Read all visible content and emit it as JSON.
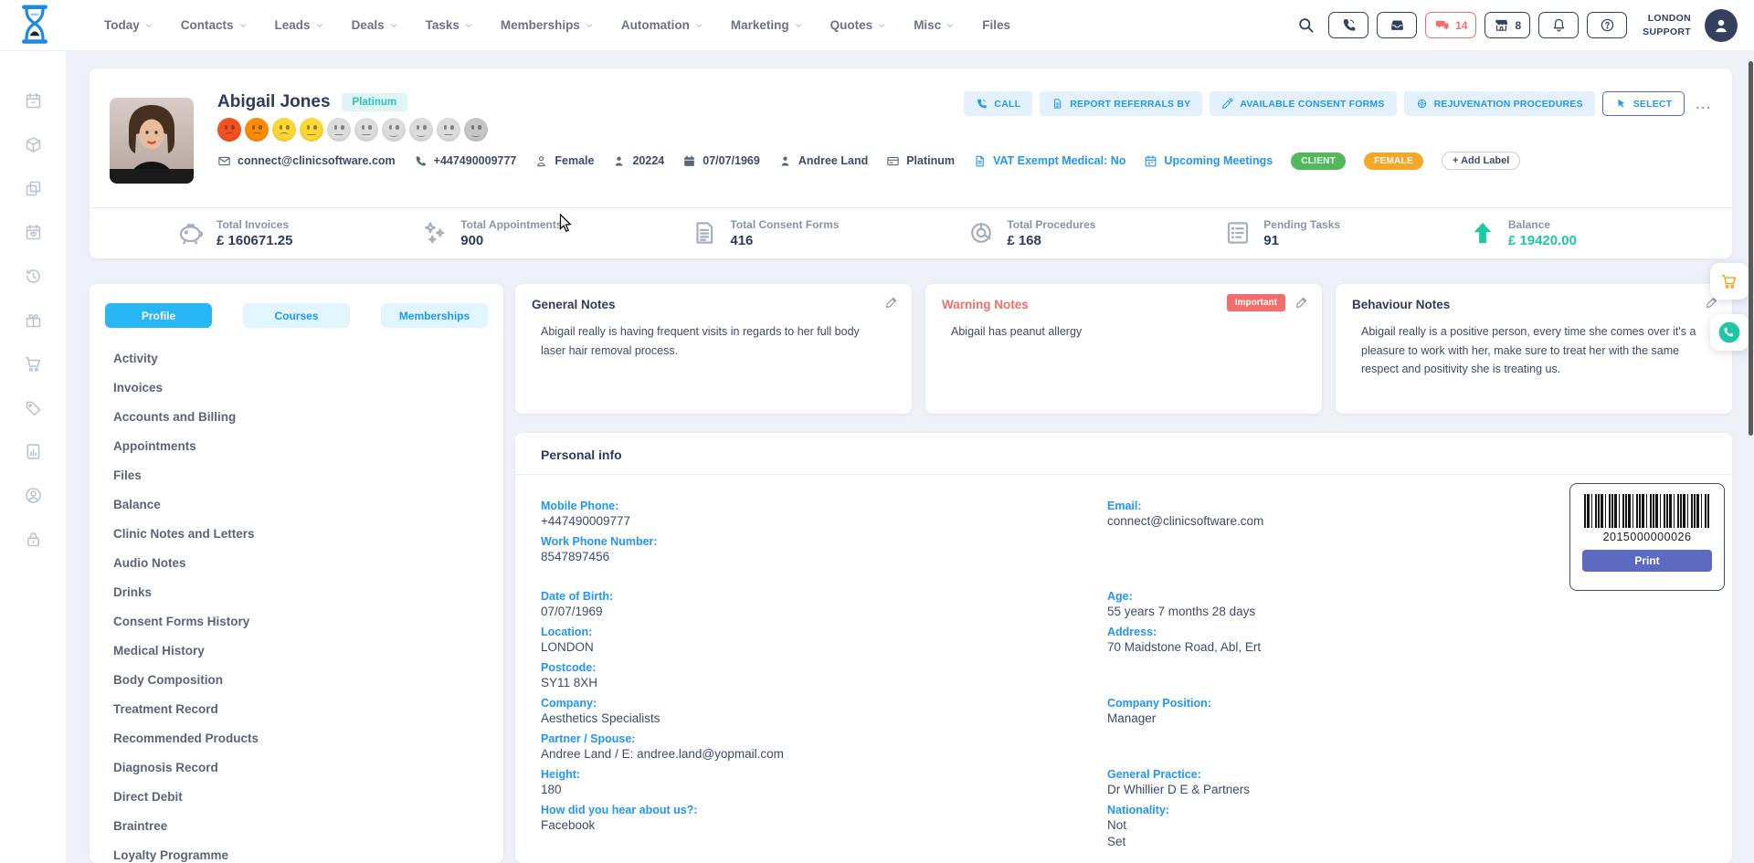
{
  "topbar": {
    "nav": [
      {
        "label": "Today",
        "dropdown": true
      },
      {
        "label": "Contacts",
        "dropdown": true
      },
      {
        "label": "Leads",
        "dropdown": true
      },
      {
        "label": "Deals",
        "dropdown": true
      },
      {
        "label": "Tasks",
        "dropdown": true
      },
      {
        "label": "Memberships",
        "dropdown": true
      },
      {
        "label": "Automation",
        "dropdown": true
      },
      {
        "label": "Marketing",
        "dropdown": true
      },
      {
        "label": "Quotes",
        "dropdown": true
      },
      {
        "label": "Misc",
        "dropdown": true
      },
      {
        "label": "Files",
        "dropdown": false
      }
    ],
    "buttons": [
      {
        "icon": "phone-call-icon"
      },
      {
        "icon": "inbox-icon"
      },
      {
        "icon": "chat-icon",
        "count": "14",
        "alert": true
      },
      {
        "icon": "store-icon",
        "count": "8"
      },
      {
        "icon": "bell-icon"
      },
      {
        "icon": "help-icon"
      }
    ],
    "location_line1": "LONDON",
    "location_line2": "SUPPORT"
  },
  "rail_icons": [
    "rail-calendar-icon",
    "package-icon",
    "copy-icon",
    "calendar-heart-icon",
    "history-icon",
    "gift-icon",
    "shopping-cart-icon",
    "tag-icon",
    "chart-report-icon",
    "person-circle-icon",
    "lock-icon"
  ],
  "patient": {
    "name": "Abigail Jones",
    "tier": "Platinum",
    "moods": [
      {
        "color": "#f4511e",
        "mouth": "frown"
      },
      {
        "color": "#fb8c00",
        "mouth": "frown"
      },
      {
        "color": "#fdd835",
        "mouth": "frown"
      },
      {
        "color": "#fdd835",
        "mouth": "neutral"
      },
      {
        "color": "#dcdcdc",
        "mouth": "neutral"
      },
      {
        "color": "#dcdcdc",
        "mouth": "neutral"
      },
      {
        "color": "#dcdcdc",
        "mouth": "smile"
      },
      {
        "color": "#dcdcdc",
        "mouth": "smile"
      },
      {
        "color": "#dcdcdc",
        "mouth": "neutral"
      },
      {
        "color": "#c6c6c6",
        "mouth": "smile"
      }
    ],
    "contacts": [
      {
        "icon": "envelope-icon",
        "text": "connect@clinicsoftware.com",
        "link": false
      },
      {
        "icon": "phone-icon",
        "text": "+447490009777",
        "link": false
      },
      {
        "icon": "gender-icon",
        "text": "Female",
        "link": false
      },
      {
        "icon": "person-icon",
        "text": "20224",
        "link": false
      },
      {
        "icon": "calendar-icon",
        "text": "07/07/1969",
        "link": false
      },
      {
        "icon": "person-icon",
        "text": "Andree Land",
        "link": false
      },
      {
        "icon": "card-icon",
        "text": "Platinum",
        "link": false
      },
      {
        "icon": "vat-doc-icon",
        "text": "VAT Exempt Medical: No",
        "link": true
      },
      {
        "icon": "meeting-calendar-icon",
        "text": "Upcoming Meetings",
        "link": true
      }
    ],
    "labels": [
      {
        "text": "CLIENT",
        "color": "#52b85a"
      },
      {
        "text": "FEMALE",
        "color": "#f5a727"
      }
    ],
    "add_label": "+ Add Label",
    "actions": [
      {
        "icon": "phone-call-icon",
        "label": "CALL",
        "variant": "solid"
      },
      {
        "icon": "report-doc-icon",
        "label": "REPORT REFERRALS BY",
        "variant": "solid"
      },
      {
        "icon": "consent-pen-icon",
        "label": "AVAILABLE CONSENT FORMS",
        "variant": "solid"
      },
      {
        "icon": "rejuvenation-icon",
        "label": "REJUVENATION PROCEDURES",
        "variant": "solid"
      },
      {
        "icon": "select-cursor-icon",
        "label": "SELECT",
        "variant": "outline"
      }
    ],
    "more": "...",
    "stats": [
      {
        "icon": "piggy-bank-icon",
        "label": "Total Invoices",
        "value": "£ 160671.25",
        "accent": false
      },
      {
        "icon": "sparkles-icon",
        "label": "Total Appointments",
        "value": "900",
        "accent": false
      },
      {
        "icon": "consent-form-icon",
        "label": "Total Consent Forms",
        "value": "416",
        "accent": false
      },
      {
        "icon": "donut-icon",
        "label": "Total Procedures",
        "value": "£ 168",
        "accent": false
      },
      {
        "icon": "task-list-icon",
        "label": "Pending Tasks",
        "value": "91",
        "accent": false
      },
      {
        "icon": "arrow-up-icon",
        "label": "Balance",
        "value": "£ 19420.00",
        "accent": true
      }
    ]
  },
  "panel": {
    "tabs": [
      {
        "label": "Profile",
        "active": true
      },
      {
        "label": "Courses",
        "active": false
      },
      {
        "label": "Memberships",
        "active": false
      }
    ],
    "menu": [
      "Activity",
      "Invoices",
      "Accounts and Billing",
      "Appointments",
      "Files",
      "Balance",
      "Clinic Notes and Letters",
      "Audio Notes",
      "Drinks",
      "Consent Forms History",
      "Medical History",
      "Body Composition",
      "Treatment Record",
      "Recommended Products",
      "Diagnosis Record",
      "Direct Debit",
      "Braintree",
      "Loyalty Programme"
    ]
  },
  "notes": [
    {
      "title": "General Notes",
      "warning": false,
      "badge": null,
      "text": "Abigail really is having frequent visits in regards to her full body laser hair removal process."
    },
    {
      "title": "Warning Notes",
      "warning": true,
      "badge": "Important",
      "text": "Abigail has peanut allergy"
    },
    {
      "title": "Behaviour Notes",
      "warning": false,
      "badge": null,
      "text": "Abigail really is a positive person, every time she comes over it's a pleasure to work with her, make sure to treat her with the same respect and positivity she is treating us."
    }
  ],
  "personal": {
    "title": "Personal info",
    "rows": [
      {
        "gap": false,
        "left": {
          "label": "Mobile Phone:",
          "value": "+447490009777"
        },
        "right": {
          "label": "Email:",
          "value": "connect@clinicsoftware.com"
        }
      },
      {
        "gap": false,
        "left": {
          "label": "Work Phone Number:",
          "value": "8547897456"
        },
        "right": null
      },
      {
        "gap": true,
        "left": {
          "label": "Date of Birth:",
          "value": "07/07/1969"
        },
        "right": {
          "label": "Age:",
          "value": "55 years 7 months 28 days"
        }
      },
      {
        "gap": false,
        "left": {
          "label": "Location:",
          "value": "LONDON"
        },
        "right": {
          "label": "Address:",
          "value": "70 Maidstone Road, Abl, Ert"
        }
      },
      {
        "gap": false,
        "left": {
          "label": "Postcode:",
          "value": "SY11 8XH"
        },
        "right": null
      },
      {
        "gap": false,
        "left": {
          "label": "Company:",
          "value": "Aesthetics Specialists"
        },
        "right": {
          "label": "Company Position:",
          "value": "Manager"
        }
      },
      {
        "gap": false,
        "left": {
          "label": "Partner / Spouse:",
          "value": "Andree Land / E: andree.land@yopmail.com"
        },
        "right": null
      },
      {
        "gap": false,
        "left": {
          "label": "Height:",
          "value": "180"
        },
        "right": {
          "label": "General Practice:",
          "value": "Dr Whillier D E & Partners"
        }
      },
      {
        "gap": false,
        "left": {
          "label": "How did you hear about us?:",
          "value": "Facebook"
        },
        "right": {
          "label": "Nationality:",
          "value": "Not\nSet"
        }
      }
    ]
  },
  "barcode": {
    "number": "2015000000026",
    "print_label": "Print"
  },
  "colors": {
    "accent_blue": "#2196f3",
    "tab_active": "#29b6f6",
    "warning_red": "#f26d6d",
    "badge_green": "#52b85a",
    "badge_orange": "#f5a727",
    "teal": "#1fc8a5",
    "tier_teal": "#29c2bc",
    "print_indigo": "#5c6bc0",
    "navy": "#2e3b5e"
  }
}
